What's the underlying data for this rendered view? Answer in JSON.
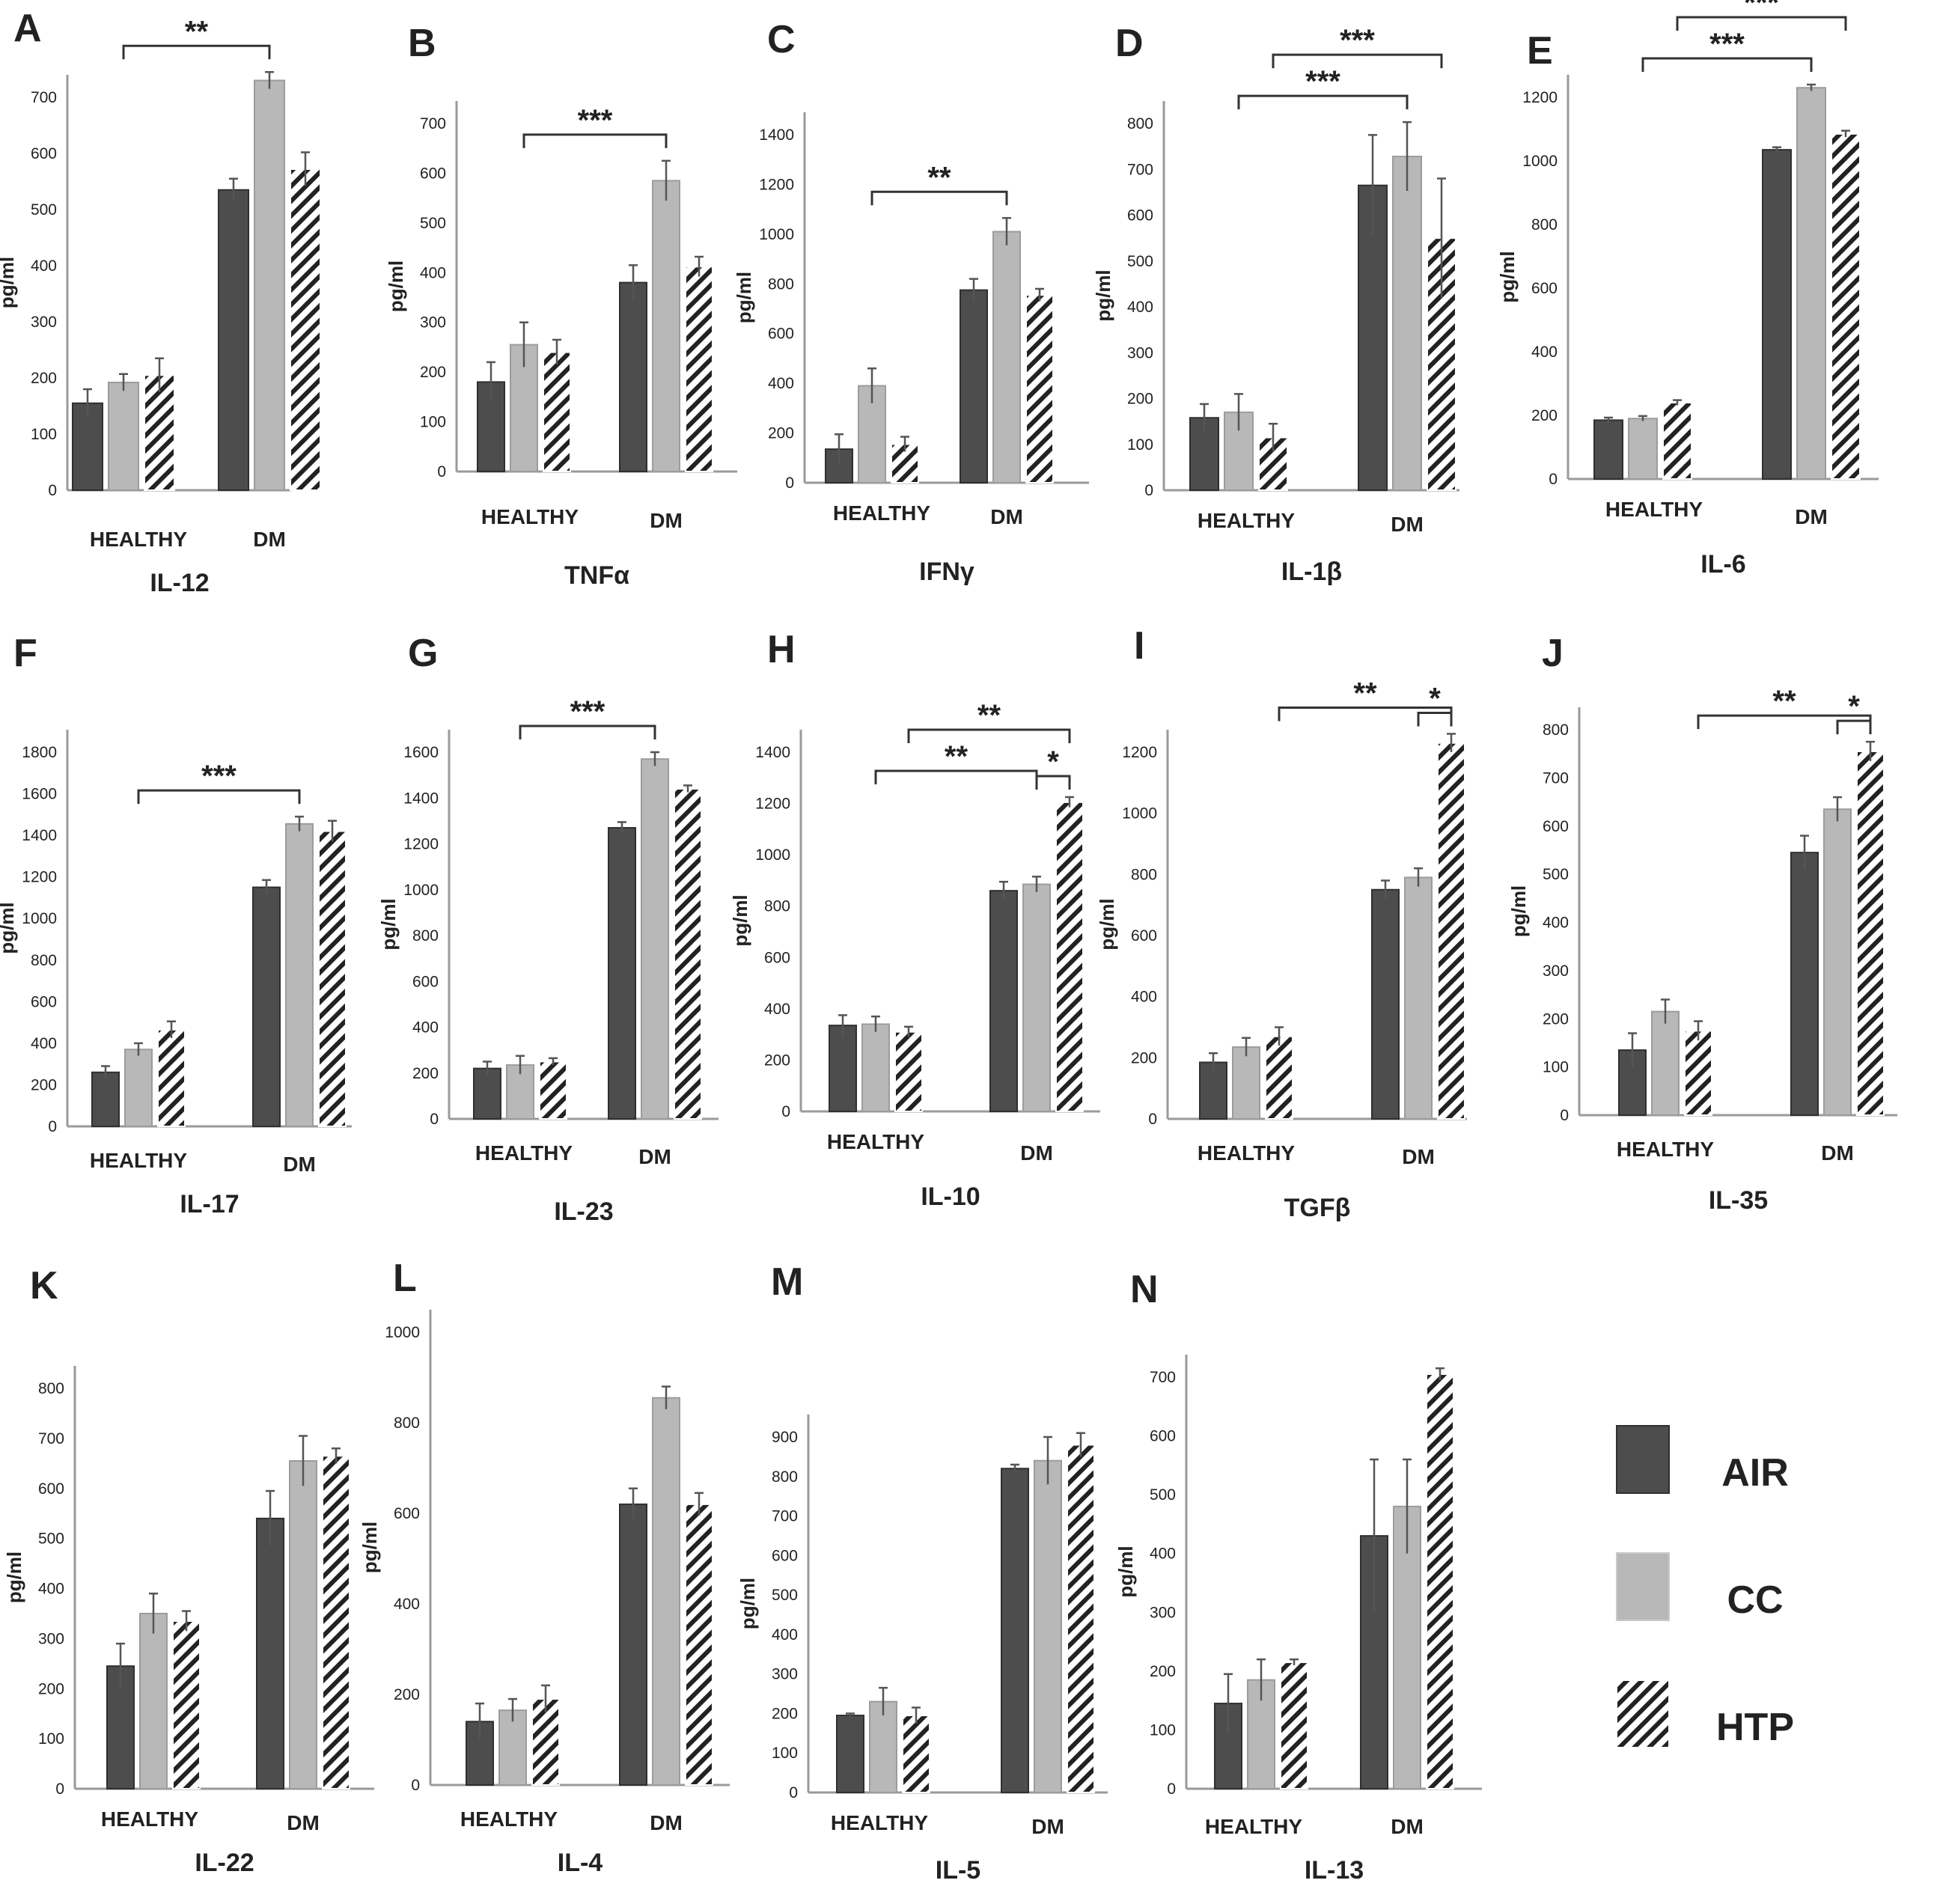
{
  "figure": {
    "units_label": "pg/ml",
    "group_labels": [
      "HEALTHY",
      "DM"
    ],
    "legend": {
      "items": [
        {
          "label": "AIR",
          "style": "dark"
        },
        {
          "label": "CC",
          "style": "light"
        },
        {
          "label": "HTP",
          "style": "hatched"
        }
      ]
    },
    "colors": {
      "air": "#4d4d4d",
      "cc": "#b8b8b8",
      "htp_stroke": "#222222",
      "axis": "#9a9a9a",
      "text": "#222222"
    }
  },
  "chart_data": [
    {
      "panel": "A",
      "title": "IL-12",
      "type": "bar",
      "ylabel": "pg/ml",
      "ylim": [
        0,
        700
      ],
      "yticks": [
        0,
        100,
        200,
        300,
        400,
        500,
        600,
        700
      ],
      "categories": [
        "HEALTHY",
        "DM"
      ],
      "series": [
        {
          "name": "AIR",
          "values": [
            155,
            535
          ],
          "errors": [
            25,
            20
          ]
        },
        {
          "name": "CC",
          "values": [
            192,
            730
          ],
          "errors": [
            15,
            15
          ]
        },
        {
          "name": "HTP",
          "values": [
            205,
            572
          ],
          "errors": [
            30,
            30
          ]
        }
      ],
      "annotations": [
        {
          "label": "**",
          "from": [
            "HEALTHY",
            "CC"
          ],
          "to": [
            "DM",
            "CC"
          ]
        }
      ]
    },
    {
      "panel": "B",
      "title": "TNFα",
      "type": "bar",
      "ylabel": "pg/ml",
      "ylim": [
        0,
        700
      ],
      "yticks": [
        0,
        100,
        200,
        300,
        400,
        500,
        600,
        700
      ],
      "categories": [
        "HEALTHY",
        "DM"
      ],
      "series": [
        {
          "name": "AIR",
          "values": [
            180,
            380
          ],
          "errors": [
            40,
            35
          ]
        },
        {
          "name": "CC",
          "values": [
            255,
            585
          ],
          "errors": [
            45,
            40
          ]
        },
        {
          "name": "HTP",
          "values": [
            240,
            412
          ],
          "errors": [
            25,
            20
          ]
        }
      ],
      "annotations": [
        {
          "label": "***",
          "from": [
            "HEALTHY",
            "CC"
          ],
          "to": [
            "DM",
            "CC"
          ]
        }
      ]
    },
    {
      "panel": "C",
      "title": "IFNγ",
      "type": "bar",
      "ylabel": "pg/ml",
      "ylim": [
        0,
        1400
      ],
      "yticks": [
        0,
        200,
        400,
        600,
        800,
        1000,
        1200,
        1400
      ],
      "categories": [
        "HEALTHY",
        "DM"
      ],
      "series": [
        {
          "name": "AIR",
          "values": [
            135,
            775
          ],
          "errors": [
            60,
            45
          ]
        },
        {
          "name": "CC",
          "values": [
            390,
            1010
          ],
          "errors": [
            70,
            55
          ]
        },
        {
          "name": "HTP",
          "values": [
            155,
            755
          ],
          "errors": [
            30,
            25
          ]
        }
      ],
      "annotations": [
        {
          "label": "**",
          "from": [
            "HEALTHY",
            "CC"
          ],
          "to": [
            "DM",
            "CC"
          ]
        }
      ]
    },
    {
      "panel": "D",
      "title": "IL-1β",
      "type": "bar",
      "ylabel": "pg/ml",
      "ylim": [
        0,
        800
      ],
      "yticks": [
        0,
        100,
        200,
        300,
        400,
        500,
        600,
        700,
        800
      ],
      "categories": [
        "HEALTHY",
        "DM"
      ],
      "series": [
        {
          "name": "AIR",
          "values": [
            158,
            665
          ],
          "errors": [
            30,
            110
          ]
        },
        {
          "name": "CC",
          "values": [
            170,
            728
          ],
          "errors": [
            40,
            75
          ]
        },
        {
          "name": "HTP",
          "values": [
            115,
            550
          ],
          "errors": [
            30,
            130
          ]
        }
      ],
      "annotations": [
        {
          "label": "***",
          "from": [
            "HEALTHY",
            "CC"
          ],
          "to": [
            "DM",
            "CC"
          ]
        },
        {
          "label": "***",
          "from": [
            "HEALTHY",
            "HTP"
          ],
          "to": [
            "DM",
            "HTP"
          ]
        }
      ]
    },
    {
      "panel": "E",
      "title": "IL-6",
      "type": "bar",
      "ylabel": "pg/ml",
      "ylim": [
        0,
        1200
      ],
      "yticks": [
        0,
        200,
        400,
        600,
        800,
        1000,
        1200
      ],
      "categories": [
        "HEALTHY",
        "DM"
      ],
      "series": [
        {
          "name": "AIR",
          "values": [
            185,
            1035
          ],
          "errors": [
            8,
            8
          ]
        },
        {
          "name": "CC",
          "values": [
            190,
            1230
          ],
          "errors": [
            8,
            10
          ]
        },
        {
          "name": "HTP",
          "values": [
            240,
            1085
          ],
          "errors": [
            8,
            10
          ]
        }
      ],
      "annotations": [
        {
          "label": "***",
          "from": [
            "HEALTHY",
            "CC"
          ],
          "to": [
            "DM",
            "CC"
          ]
        },
        {
          "label": "***",
          "from": [
            "HEALTHY",
            "HTP"
          ],
          "to": [
            "DM",
            "HTP"
          ]
        }
      ]
    },
    {
      "panel": "F",
      "title": "IL-17",
      "type": "bar",
      "ylabel": "pg/ml",
      "ylim": [
        0,
        1800
      ],
      "yticks": [
        0,
        200,
        400,
        600,
        800,
        1000,
        1200,
        1400,
        1600,
        1800
      ],
      "categories": [
        "HEALTHY",
        "DM"
      ],
      "series": [
        {
          "name": "AIR",
          "values": [
            260,
            1150
          ],
          "errors": [
            30,
            35
          ]
        },
        {
          "name": "CC",
          "values": [
            370,
            1455
          ],
          "errors": [
            30,
            35
          ]
        },
        {
          "name": "HTP",
          "values": [
            465,
            1420
          ],
          "errors": [
            40,
            50
          ]
        }
      ],
      "annotations": [
        {
          "label": "***",
          "from": [
            "HEALTHY",
            "CC"
          ],
          "to": [
            "DM",
            "CC"
          ]
        }
      ]
    },
    {
      "panel": "G",
      "title": "IL-23",
      "type": "bar",
      "ylabel": "pg/ml",
      "ylim": [
        0,
        1600
      ],
      "yticks": [
        0,
        200,
        400,
        600,
        800,
        1000,
        1200,
        1400,
        1600
      ],
      "categories": [
        "HEALTHY",
        "DM"
      ],
      "series": [
        {
          "name": "AIR",
          "values": [
            220,
            1270
          ],
          "errors": [
            30,
            25
          ]
        },
        {
          "name": "CC",
          "values": [
            235,
            1570
          ],
          "errors": [
            40,
            30
          ]
        },
        {
          "name": "HTP",
          "values": [
            250,
            1440
          ],
          "errors": [
            15,
            15
          ]
        }
      ],
      "annotations": [
        {
          "label": "***",
          "from": [
            "HEALTHY",
            "CC"
          ],
          "to": [
            "DM",
            "CC"
          ]
        }
      ]
    },
    {
      "panel": "H",
      "title": "IL-10",
      "type": "bar",
      "ylabel": "pg/ml",
      "ylim": [
        0,
        1400
      ],
      "yticks": [
        0,
        200,
        400,
        600,
        800,
        1000,
        1200,
        1400
      ],
      "categories": [
        "HEALTHY",
        "DM"
      ],
      "series": [
        {
          "name": "AIR",
          "values": [
            335,
            860
          ],
          "errors": [
            40,
            35
          ]
        },
        {
          "name": "CC",
          "values": [
            340,
            885
          ],
          "errors": [
            30,
            30
          ]
        },
        {
          "name": "HTP",
          "values": [
            310,
            1205
          ],
          "errors": [
            20,
            20
          ]
        }
      ],
      "annotations": [
        {
          "label": "**",
          "from": [
            "HEALTHY",
            "CC"
          ],
          "to": [
            "DM",
            "CC"
          ]
        },
        {
          "label": "**",
          "from": [
            "HEALTHY",
            "HTP"
          ],
          "to": [
            "DM",
            "HTP"
          ]
        },
        {
          "label": "*",
          "from": [
            "DM",
            "CC"
          ],
          "to": [
            "DM",
            "HTP"
          ]
        }
      ]
    },
    {
      "panel": "I",
      "title": "TGFβ",
      "type": "bar",
      "ylabel": "pg/ml",
      "ylim": [
        0,
        1200
      ],
      "yticks": [
        0,
        200,
        400,
        600,
        800,
        1000,
        1200
      ],
      "categories": [
        "HEALTHY",
        "DM"
      ],
      "series": [
        {
          "name": "AIR",
          "values": [
            185,
            750
          ],
          "errors": [
            30,
            30
          ]
        },
        {
          "name": "CC",
          "values": [
            235,
            790
          ],
          "errors": [
            30,
            30
          ]
        },
        {
          "name": "HTP",
          "values": [
            270,
            1230
          ],
          "errors": [
            30,
            30
          ]
        }
      ],
      "annotations": [
        {
          "label": "**",
          "from": [
            "HEALTHY",
            "HTP"
          ],
          "to": [
            "DM",
            "HTP"
          ]
        },
        {
          "label": "*",
          "from": [
            "DM",
            "CC"
          ],
          "to": [
            "DM",
            "HTP"
          ]
        }
      ]
    },
    {
      "panel": "J",
      "title": "IL-35",
      "type": "bar",
      "ylabel": "pg/ml",
      "ylim": [
        0,
        800
      ],
      "yticks": [
        0,
        100,
        200,
        300,
        400,
        500,
        600,
        700,
        800
      ],
      "categories": [
        "HEALTHY",
        "DM"
      ],
      "series": [
        {
          "name": "AIR",
          "values": [
            135,
            545
          ],
          "errors": [
            35,
            35
          ]
        },
        {
          "name": "CC",
          "values": [
            215,
            635
          ],
          "errors": [
            25,
            25
          ]
        },
        {
          "name": "HTP",
          "values": [
            175,
            755
          ],
          "errors": [
            20,
            20
          ]
        }
      ],
      "annotations": [
        {
          "label": "**",
          "from": [
            "HEALTHY",
            "HTP"
          ],
          "to": [
            "DM",
            "HTP"
          ]
        },
        {
          "label": "*",
          "from": [
            "DM",
            "CC"
          ],
          "to": [
            "DM",
            "HTP"
          ]
        }
      ]
    },
    {
      "panel": "K",
      "title": "IL-22",
      "type": "bar",
      "ylabel": "pg/ml",
      "ylim": [
        0,
        800
      ],
      "yticks": [
        0,
        100,
        200,
        300,
        400,
        500,
        600,
        700,
        800
      ],
      "categories": [
        "HEALTHY",
        "DM"
      ],
      "series": [
        {
          "name": "AIR",
          "values": [
            245,
            540
          ],
          "errors": [
            45,
            55
          ]
        },
        {
          "name": "CC",
          "values": [
            350,
            655
          ],
          "errors": [
            40,
            50
          ]
        },
        {
          "name": "HTP",
          "values": [
            335,
            665
          ],
          "errors": [
            20,
            15
          ]
        }
      ],
      "annotations": []
    },
    {
      "panel": "L",
      "title": "IL-4",
      "type": "bar",
      "ylabel": "pg/ml",
      "ylim": [
        0,
        1000
      ],
      "yticks": [
        0,
        200,
        400,
        600,
        800,
        1000
      ],
      "categories": [
        "HEALTHY",
        "DM"
      ],
      "series": [
        {
          "name": "AIR",
          "values": [
            140,
            620
          ],
          "errors": [
            40,
            35
          ]
        },
        {
          "name": "CC",
          "values": [
            165,
            855
          ],
          "errors": [
            25,
            25
          ]
        },
        {
          "name": "HTP",
          "values": [
            190,
            620
          ],
          "errors": [
            30,
            25
          ]
        }
      ],
      "annotations": []
    },
    {
      "panel": "M",
      "title": "IL-5",
      "type": "bar",
      "ylabel": "pg/ml",
      "ylim": [
        0,
        900
      ],
      "yticks": [
        0,
        100,
        200,
        300,
        400,
        500,
        600,
        700,
        800,
        900
      ],
      "categories": [
        "HEALTHY",
        "DM"
      ],
      "series": [
        {
          "name": "AIR",
          "values": [
            195,
            820
          ],
          "errors": [
            5,
            10
          ]
        },
        {
          "name": "CC",
          "values": [
            230,
            840
          ],
          "errors": [
            35,
            60
          ]
        },
        {
          "name": "HTP",
          "values": [
            195,
            880
          ],
          "errors": [
            20,
            30
          ]
        }
      ],
      "annotations": []
    },
    {
      "panel": "N",
      "title": "IL-13",
      "type": "bar",
      "ylabel": "pg/ml",
      "ylim": [
        0,
        700
      ],
      "yticks": [
        0,
        100,
        200,
        300,
        400,
        500,
        600,
        700
      ],
      "categories": [
        "HEALTHY",
        "DM"
      ],
      "series": [
        {
          "name": "AIR",
          "values": [
            145,
            430
          ],
          "errors": [
            50,
            130
          ]
        },
        {
          "name": "CC",
          "values": [
            185,
            480
          ],
          "errors": [
            35,
            80
          ]
        },
        {
          "name": "HTP",
          "values": [
            215,
            705
          ],
          "errors": [
            5,
            10
          ]
        }
      ],
      "annotations": []
    }
  ]
}
